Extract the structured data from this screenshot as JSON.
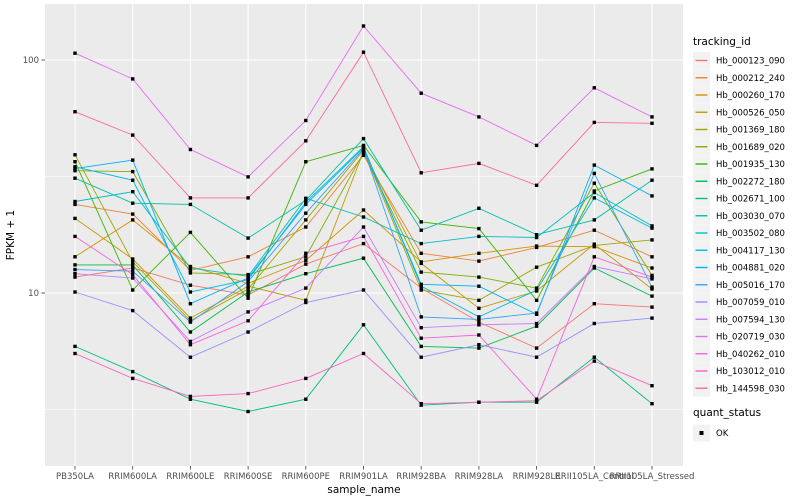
{
  "chart_data": {
    "type": "line",
    "title": "",
    "xlabel": "sample_name",
    "ylabel": "FPKM + 1",
    "y_scale": "log10",
    "y_ticks": [
      100,
      10
    ],
    "y_minor_gridlines": [
      31.623,
      3.1623
    ],
    "ylim": [
      1.9,
      170
    ],
    "grid": true,
    "legend_position": "right",
    "categories": [
      "PB350LA",
      "RRIM600LA",
      "RRIM600LE",
      "RRIM600SE",
      "RRIM600PE",
      "RRIM901LA",
      "RRIM928BA",
      "RRIM928LA",
      "RRIM928LE",
      "RRII105LA_Control",
      "RRII105LA_Stressed"
    ],
    "legend": {
      "color_title": "tracking_id",
      "shape_title": "quant_status",
      "shape_entries": [
        {
          "label": "OK",
          "shape": "filled-square",
          "color": "#000000"
        }
      ]
    },
    "point_shape": "filled-square",
    "point_color": "#000000",
    "series": [
      {
        "name": "Hb_000123_090",
        "color": "#F8766D",
        "values": [
          11.7,
          12.8,
          10.8,
          9.8,
          13.3,
          16.3,
          10.5,
          7.5,
          5.8,
          9.0,
          8.7
        ]
      },
      {
        "name": "Hb_000212_240",
        "color": "#EA8331",
        "values": [
          24.0,
          21.8,
          12.5,
          14.3,
          19.2,
          39.0,
          14.8,
          13.7,
          15.7,
          18.6,
          14.3
        ]
      },
      {
        "name": "Hb_000260_170",
        "color": "#D89000",
        "values": [
          14.3,
          20.6,
          13.0,
          11.0,
          13.8,
          22.7,
          13.6,
          14.8,
          15.9,
          15.8,
          12.8
        ]
      },
      {
        "name": "Hb_000526_050",
        "color": "#C09B00",
        "values": [
          20.9,
          14.0,
          7.8,
          10.7,
          9.3,
          40.5,
          13.4,
          8.6,
          10.2,
          16.2,
          10.4
        ]
      },
      {
        "name": "Hb_001369_180",
        "color": "#A3A500",
        "values": [
          39.2,
          13.6,
          7.6,
          10.4,
          20.6,
          41.0,
          10.3,
          9.3,
          12.9,
          16.0,
          16.9
        ]
      },
      {
        "name": "Hb_001689_020",
        "color": "#7CAE00",
        "values": [
          33.5,
          33.2,
          12.2,
          12.0,
          14.3,
          40.0,
          12.3,
          11.7,
          10.5,
          29.6,
          11.9
        ]
      },
      {
        "name": "Hb_001935_130",
        "color": "#39B600",
        "values": [
          36.6,
          10.3,
          18.2,
          9.5,
          36.6,
          43.0,
          20.2,
          18.9,
          9.3,
          27.4,
          34.1
        ]
      },
      {
        "name": "Hb_002272_180",
        "color": "#00BB4E",
        "values": [
          13.2,
          13.2,
          6.8,
          10.1,
          12.1,
          14.1,
          5.9,
          5.8,
          7.2,
          12.8,
          9.7
        ]
      },
      {
        "name": "Hb_002671_100",
        "color": "#00BF7D",
        "values": [
          5.9,
          4.6,
          3.5,
          3.1,
          3.5,
          7.3,
          3.3,
          3.4,
          3.4,
          5.3,
          3.35
        ]
      },
      {
        "name": "Hb_003030_070",
        "color": "#00C1A3",
        "values": [
          31.1,
          24.3,
          24.0,
          17.2,
          25.0,
          46.0,
          18.6,
          23.1,
          17.8,
          20.6,
          30.5
        ]
      },
      {
        "name": "Hb_003502_080",
        "color": "#00BFC4",
        "values": [
          24.7,
          27.2,
          12.8,
          11.8,
          25.5,
          21.2,
          16.3,
          17.5,
          17.3,
          27.0,
          19.4
        ]
      },
      {
        "name": "Hb_004117_130",
        "color": "#00BAE0",
        "values": [
          34.8,
          30.5,
          10.1,
          11.4,
          24.5,
          42.5,
          10.7,
          7.9,
          10.3,
          25.6,
          19.0
        ]
      },
      {
        "name": "Hb_004881_020",
        "color": "#00B0F6",
        "values": [
          34.2,
          37.2,
          9.0,
          11.6,
          24.0,
          42.0,
          10.9,
          10.7,
          8.1,
          35.4,
          26.1
        ]
      },
      {
        "name": "Hb_005016_170",
        "color": "#35A2FF",
        "values": [
          12.6,
          12.4,
          7.5,
          11.2,
          22.0,
          41.5,
          7.9,
          7.7,
          8.2,
          32.6,
          10.6
        ]
      },
      {
        "name": "Hb_007059_010",
        "color": "#9590FF",
        "values": [
          10.1,
          8.4,
          5.3,
          6.8,
          9.1,
          10.3,
          5.3,
          6.0,
          5.3,
          7.4,
          7.8
        ]
      },
      {
        "name": "Hb_007594_130",
        "color": "#C77CFF",
        "values": [
          12.1,
          11.6,
          6.2,
          8.3,
          10.5,
          19.2,
          7.1,
          7.3,
          7.4,
          13.0,
          11.5
        ]
      },
      {
        "name": "Hb_020719_030",
        "color": "#E76BF3",
        "values": [
          107,
          83,
          41.3,
          31.5,
          55,
          140,
          72,
          57,
          43,
          76,
          57
        ]
      },
      {
        "name": "Hb_040262_010",
        "color": "#FA62DB",
        "values": [
          17.5,
          12.0,
          6.0,
          7.6,
          14.8,
          17.5,
          6.4,
          6.6,
          3.5,
          14.3,
          11.7
        ]
      },
      {
        "name": "Hb_103012_010",
        "color": "#FF62BC",
        "values": [
          5.5,
          4.3,
          3.6,
          3.7,
          4.3,
          5.5,
          3.35,
          3.4,
          3.45,
          5.1,
          4.0
        ]
      },
      {
        "name": "Hb_144598_030",
        "color": "#FF6A98",
        "values": [
          60,
          47.6,
          25.6,
          25.6,
          45,
          108,
          32.8,
          36.0,
          29.0,
          54,
          53.5
        ]
      }
    ]
  },
  "theme": {
    "panel_bg": "#EBEBEB",
    "grid_color": "#FFFFFF",
    "legend_key_bg": "#F2F2F2",
    "axis_text_color": "#4D4D4D",
    "tick_color": "#333333",
    "title_color": "#000000"
  }
}
